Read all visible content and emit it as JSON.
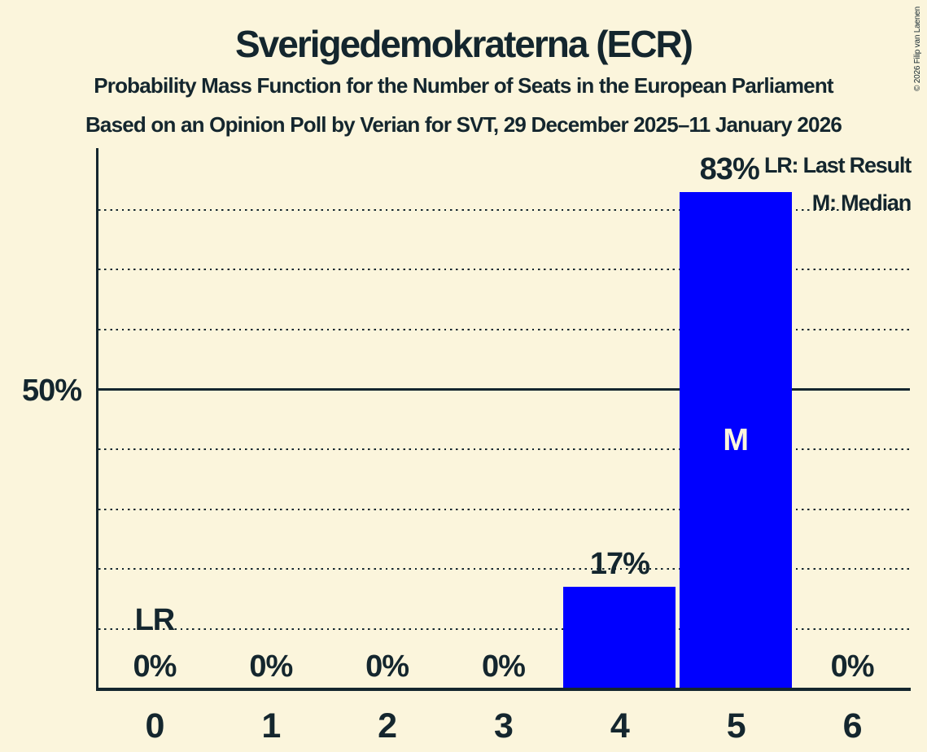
{
  "header": {
    "title": "Sverigedemokraterna (ECR)",
    "subtitle_line1": "Probability Mass Function for the Number of Seats in the European Parliament",
    "subtitle_line2": "Based on an Opinion Poll by Verian for SVT, 29 December 2025–11 January 2026"
  },
  "copyright": "© 2026 Filip van Laenen",
  "legend": {
    "lr_label": "LR: Last Result",
    "m_label": "M: Median"
  },
  "colors": {
    "background": "#FBF5DC",
    "ink": "#14262E",
    "bar": "#0000FF",
    "bar_text": "#FBF5DC"
  },
  "chart_data": {
    "type": "bar",
    "title": "Sverigedemokraterna (ECR)",
    "categories": [
      "0",
      "1",
      "2",
      "3",
      "4",
      "5",
      "6"
    ],
    "values": [
      0,
      0,
      0,
      0,
      17,
      83,
      0
    ],
    "value_labels": [
      "0%",
      "0%",
      "0%",
      "0%",
      "17%",
      "83%",
      "0%"
    ],
    "y_axis": {
      "tick_label": "50%",
      "tick_value": 50,
      "ylim": [
        0,
        90
      ],
      "gridlines_pct": [
        10,
        20,
        30,
        40,
        50,
        60,
        70,
        80
      ],
      "solid_gridline_pct": 50,
      "grid_style": "dotted"
    },
    "annotations": {
      "lr_marker": "LR",
      "last_result_seats": "0",
      "median_marker": "M",
      "median_seats": "5"
    },
    "legend_position": "top-right"
  }
}
